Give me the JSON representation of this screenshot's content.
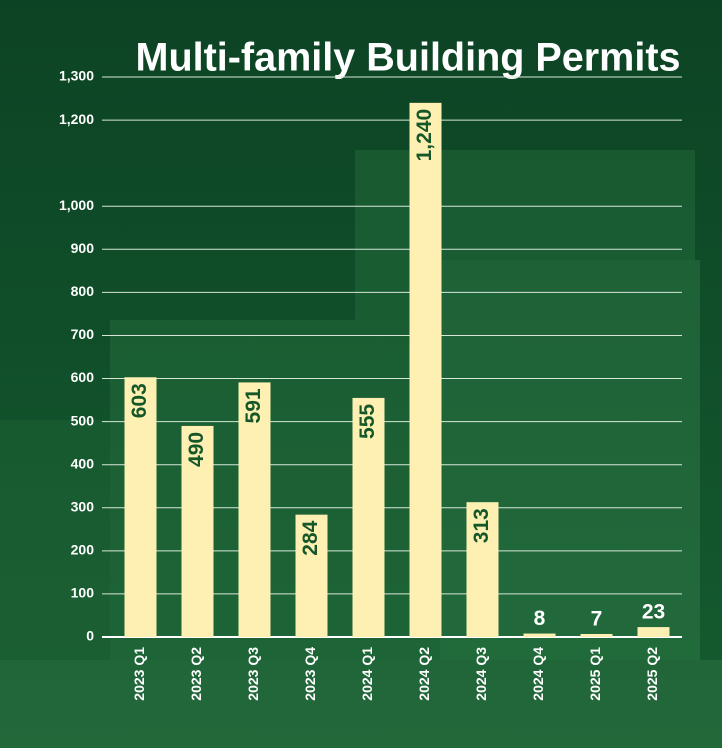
{
  "chart_data": {
    "type": "bar",
    "title": "Multi-family Building Permits",
    "categories": [
      "2023 Q1",
      "2023 Q2",
      "2023 Q3",
      "2023 Q4",
      "2024 Q1",
      "2024 Q2",
      "2024 Q3",
      "2024 Q4",
      "2025 Q1",
      "2025 Q2"
    ],
    "values": [
      603,
      490,
      591,
      284,
      555,
      1240,
      313,
      8,
      7,
      23
    ],
    "value_labels": [
      "603",
      "490",
      "591",
      "284",
      "555",
      "1,240",
      "313",
      "8",
      "7",
      "23"
    ],
    "color": "#fdf0b2",
    "ylim": [
      0,
      1300
    ],
    "yticks": [
      0,
      100,
      200,
      300,
      400,
      500,
      600,
      700,
      800,
      900,
      {
        "value": 1000,
        "label": "1,000"
      },
      {
        "value": 1200,
        "label": "1,200"
      },
      {
        "value": 1300,
        "label": "1,300"
      }
    ],
    "grid": true
  }
}
